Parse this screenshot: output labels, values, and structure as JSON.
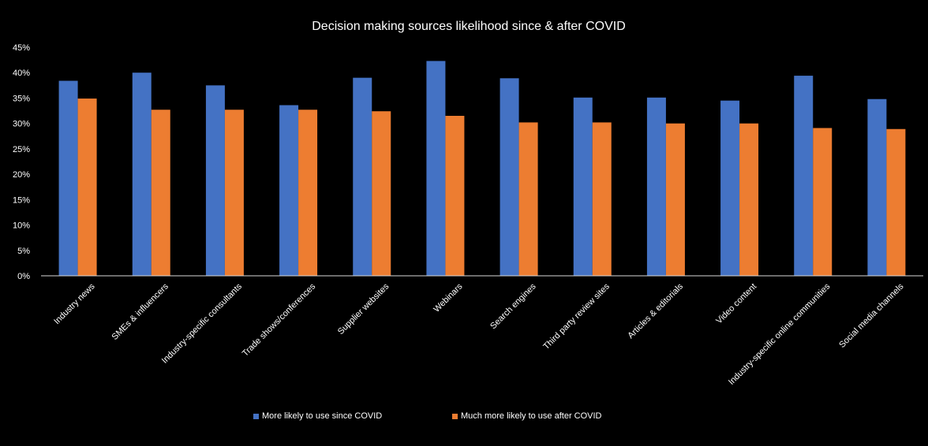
{
  "chart_data": {
    "type": "bar",
    "title": "Decision making sources likelihood since & after COVID",
    "xlabel": "",
    "ylabel": "",
    "ylim": [
      0,
      45
    ],
    "yticks": [
      "0%",
      "5%",
      "10%",
      "15%",
      "20%",
      "25%",
      "30%",
      "35%",
      "40%",
      "45%"
    ],
    "ytick_values": [
      0,
      5,
      10,
      15,
      20,
      25,
      30,
      35,
      40,
      45
    ],
    "categories": [
      "Industry news",
      "SMEs & influencers",
      "Industry-specific consultants",
      "Trade shows/conferences",
      "Supplier websites",
      "Webinars",
      "Search engines",
      "Third party review sites",
      "Articles & editorials",
      "Video content",
      "Industry-specific online communities",
      "Social media channels"
    ],
    "series": [
      {
        "name": "More likely to use since COVID",
        "color": "#4472C4",
        "values": [
          38.4,
          40.0,
          37.5,
          33.6,
          39.0,
          42.3,
          38.9,
          35.1,
          35.1,
          34.5,
          39.4,
          34.8
        ]
      },
      {
        "name": "Much more likely to use after COVID",
        "color": "#ED7D31",
        "values": [
          34.9,
          32.7,
          32.7,
          32.7,
          32.4,
          31.5,
          30.2,
          30.2,
          30.0,
          30.0,
          29.1,
          28.9
        ]
      }
    ],
    "grid": false,
    "legend_position": "bottom"
  }
}
